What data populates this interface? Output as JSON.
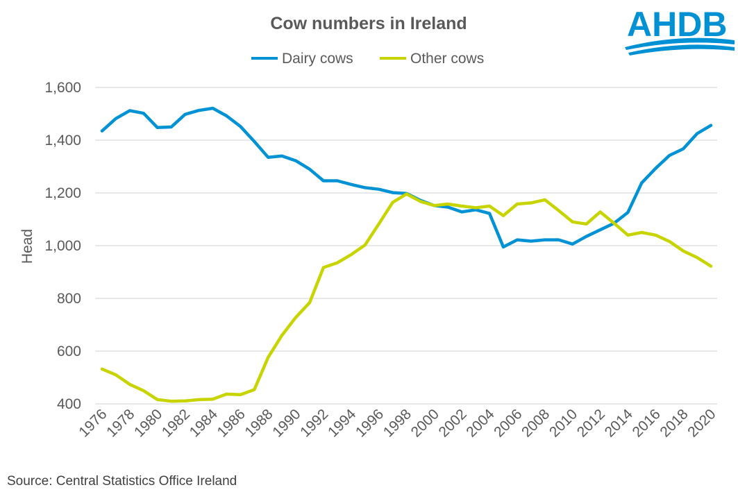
{
  "logo": {
    "text": "AHDB"
  },
  "source": "Source: Central Statistics Office Ireland",
  "chart_data": {
    "type": "line",
    "title": "Cow numbers in Ireland",
    "xlabel": "",
    "ylabel": "Head",
    "ylim": [
      400,
      1600
    ],
    "yticks": [
      400,
      600,
      800,
      1000,
      1200,
      1400,
      1600
    ],
    "ytick_labels": [
      "400",
      "600",
      "800",
      "1,000",
      "1,200",
      "1,400",
      "1,600"
    ],
    "grid": true,
    "legend_position": "top-center",
    "x": [
      1976,
      1977,
      1978,
      1979,
      1980,
      1981,
      1982,
      1983,
      1984,
      1985,
      1986,
      1987,
      1988,
      1989,
      1990,
      1991,
      1992,
      1993,
      1994,
      1995,
      1996,
      1997,
      1998,
      1999,
      2000,
      2001,
      2002,
      2003,
      2004,
      2005,
      2006,
      2007,
      2008,
      2009,
      2010,
      2011,
      2012,
      2013,
      2014,
      2015,
      2016,
      2017,
      2018,
      2019,
      2020
    ],
    "xtick_labels": [
      "1976",
      "1978",
      "1980",
      "1982",
      "1984",
      "1986",
      "1988",
      "1990",
      "1992",
      "1994",
      "1996",
      "1998",
      "2000",
      "2002",
      "2004",
      "2006",
      "2008",
      "2010",
      "2012",
      "2014",
      "2016",
      "2018",
      "2020"
    ],
    "series": [
      {
        "name": "Dairy cows",
        "color": "#0092d4",
        "values": [
          1435,
          1482,
          1512,
          1502,
          1448,
          1450,
          1498,
          1513,
          1521,
          1492,
          1452,
          1395,
          1335,
          1340,
          1322,
          1290,
          1246,
          1246,
          1232,
          1220,
          1214,
          1201,
          1198,
          1172,
          1152,
          1146,
          1128,
          1136,
          1122,
          995,
          1022,
          1017,
          1022,
          1022,
          1006,
          1035,
          1060,
          1085,
          1126,
          1238,
          1293,
          1342,
          1367,
          1425,
          1456
        ]
      },
      {
        "name": "Other cows",
        "color": "#c8d400",
        "values": [
          532,
          510,
          474,
          450,
          416,
          410,
          411,
          416,
          418,
          437,
          435,
          454,
          576,
          660,
          728,
          784,
          917,
          935,
          966,
          1002,
          1082,
          1164,
          1196,
          1168,
          1152,
          1158,
          1150,
          1144,
          1150,
          1114,
          1158,
          1162,
          1174,
          1133,
          1090,
          1082,
          1128,
          1085,
          1040,
          1050,
          1040,
          1016,
          980,
          955,
          922
        ]
      }
    ]
  }
}
